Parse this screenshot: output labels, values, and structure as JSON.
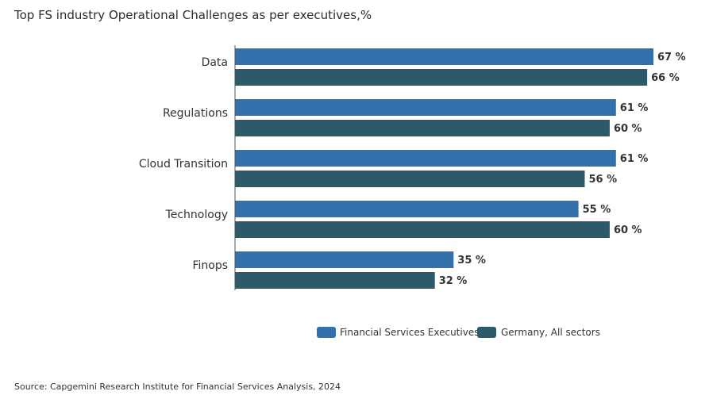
{
  "title": "Top FS industry Operational Challenges as per executives,%",
  "source": "Source: Capgemini Research Institute for Financial Services Analysis, 2024",
  "colors": {
    "series1": "#3470ab",
    "series2": "#2c5a6b",
    "axis": "#555555",
    "label": "#333333"
  },
  "chart_data": {
    "type": "bar",
    "orientation": "horizontal",
    "title": "Top FS industry Operational Challenges as per executives,%",
    "categories": [
      "Data",
      "Regulations",
      "Cloud Transition",
      "Technology",
      "Finops"
    ],
    "series": [
      {
        "name": "Financial Services Executives",
        "values": [
          67,
          61,
          61,
          55,
          35
        ]
      },
      {
        "name": "Germany, All sectors",
        "values": [
          66,
          60,
          56,
          60,
          32
        ]
      }
    ],
    "value_suffix": " %",
    "xlim": [
      0,
      67
    ],
    "grid": false,
    "legend": "bottom-right"
  }
}
